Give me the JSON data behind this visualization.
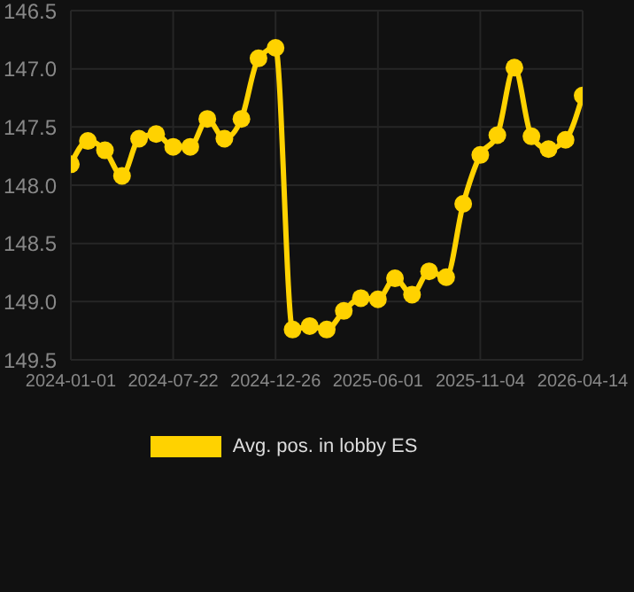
{
  "chart_data": {
    "type": "line",
    "categories": [
      "2024-01-01",
      null,
      null,
      null,
      null,
      null,
      "2024-07-22",
      null,
      null,
      null,
      null,
      null,
      "2024-12-26",
      null,
      null,
      null,
      null,
      null,
      "2025-06-01",
      null,
      null,
      null,
      null,
      null,
      "2025-11-04",
      null,
      null,
      null,
      null,
      null,
      "2026-04-14"
    ],
    "series": [
      {
        "name": "Avg. pos. in lobby ES",
        "color": "#ffd200",
        "values": [
          147.82,
          147.62,
          147.7,
          147.92,
          147.6,
          147.56,
          147.67,
          147.67,
          147.43,
          147.6,
          147.43,
          146.91,
          146.82,
          149.24,
          149.21,
          149.24,
          149.08,
          148.97,
          148.98,
          148.8,
          148.94,
          148.74,
          148.79,
          148.16,
          147.74,
          147.57,
          146.99,
          147.58,
          147.69,
          147.61,
          147.23
        ]
      }
    ],
    "ylim": [
      149.5,
      146.5
    ],
    "yticks": [
      {
        "value": 146.5,
        "label": "146.5"
      },
      {
        "value": 147,
        "label": "147.0"
      },
      {
        "value": 147.5,
        "label": "147.5"
      },
      {
        "value": 148,
        "label": "148.0"
      },
      {
        "value": 148.5,
        "label": "148.5"
      },
      {
        "value": 149,
        "label": "149.0"
      },
      {
        "value": 149.5,
        "label": "149.5"
      }
    ],
    "grid": true,
    "legend": "bottom",
    "marker": "circle",
    "line_style": "solid"
  }
}
